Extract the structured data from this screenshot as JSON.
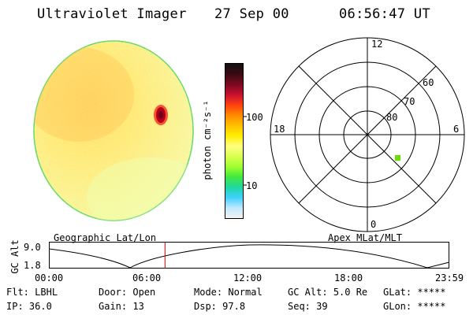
{
  "header": {
    "instrument": "Ultraviolet Imager",
    "date": "27 Sep 00",
    "time": "06:56:47 UT"
  },
  "colorbar": {
    "unit_label": "photon cm⁻²s⁻¹",
    "tick_labels": [
      "100",
      "10"
    ],
    "colors": [
      "#111111",
      "#3a0a12",
      "#7a0a22",
      "#c8102e",
      "#ff4010",
      "#ff8a00",
      "#ffc000",
      "#ffee00",
      "#ffff80",
      "#d8ff50",
      "#a0ff30",
      "#40e840",
      "#20d8a0",
      "#40d0ff",
      "#c0e8ff",
      "#f2f2f2"
    ]
  },
  "polar_plot": {
    "hour_labels": [
      "12",
      "18",
      "6",
      "0"
    ],
    "lat_labels": [
      "60",
      "70",
      "80"
    ],
    "marker_color": "#66e000"
  },
  "orbit_plot": {
    "left_label": "Geographic Lat/Lon",
    "right_label": "Apex MLat/MLT",
    "y_axis_label": "GC Alt",
    "y_ticks": [
      "9.0",
      "1.8"
    ],
    "x_ticks": [
      "00:00",
      "06:00",
      "12:00",
      "18:00",
      "23:59"
    ],
    "current_time_fraction": 0.29,
    "current_time_color": "#cc0000"
  },
  "info_rows": [
    [
      {
        "label": "Flt:",
        "value": "LBHL"
      },
      {
        "label": "Door:",
        "value": "Open"
      },
      {
        "label": "Mode:",
        "value": "Normal"
      },
      {
        "label": "GC Alt:",
        "value": "5.0 Re"
      },
      {
        "label": "GLat:",
        "value": "*****"
      }
    ],
    [
      {
        "label": "IP:",
        "value": "36.0"
      },
      {
        "label": "Gain:",
        "value": "13"
      },
      {
        "label": "Dsp:",
        "value": "97.8"
      },
      {
        "label": "Seq:",
        "value": "39"
      },
      {
        "label": "GLon:",
        "value": "*****"
      }
    ]
  ]
}
